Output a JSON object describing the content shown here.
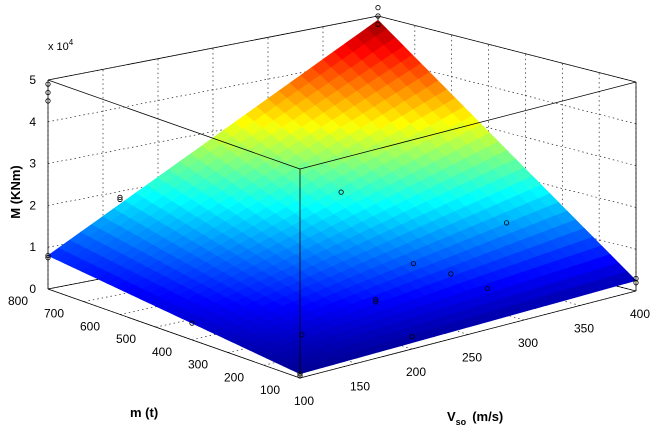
{
  "chart_data": {
    "type": "surface",
    "xlabel": "V",
    "xlabel_sub": "so",
    "xlabel_unit": "(m/s)",
    "ylabel": "m  (t)",
    "zlabel": "M  (KNm)",
    "z_exponent_prefix": "x 10",
    "z_exponent_power": "4",
    "xlim": [
      100,
      400
    ],
    "ylim": [
      100,
      800
    ],
    "zlim": [
      0,
      50000
    ],
    "x_ticks": [
      "100",
      "150",
      "200",
      "250",
      "300",
      "350",
      "400"
    ],
    "y_ticks": [
      "100",
      "200",
      "300",
      "400",
      "500",
      "600",
      "700",
      "800"
    ],
    "z_ticks": [
      "0",
      "1",
      "2",
      "3",
      "4",
      "5"
    ],
    "grid": true,
    "colormap": "jet",
    "surface_corners": [
      {
        "x": 100,
        "y": 100,
        "z": 1000
      },
      {
        "x": 400,
        "y": 100,
        "z": 2500
      },
      {
        "x": 100,
        "y": 800,
        "z": 8000
      },
      {
        "x": 400,
        "y": 800,
        "z": 49000
      }
    ],
    "points": [
      {
        "x": 100,
        "y": 100,
        "z": 1000
      },
      {
        "x": 100,
        "y": 100,
        "z": 500
      },
      {
        "x": 100,
        "y": 400,
        "z": 4000
      },
      {
        "x": 100,
        "y": 800,
        "z": 8000
      },
      {
        "x": 100,
        "y": 800,
        "z": 7500
      },
      {
        "x": 100,
        "y": 600,
        "z": 28000
      },
      {
        "x": 100,
        "y": 600,
        "z": 27500
      },
      {
        "x": 150,
        "y": 250,
        "z": 2500
      },
      {
        "x": 200,
        "y": 100,
        "z": 3000
      },
      {
        "x": 200,
        "y": 200,
        "z": 9000
      },
      {
        "x": 200,
        "y": 200,
        "z": 8500
      },
      {
        "x": 250,
        "y": 250,
        "z": 13000
      },
      {
        "x": 300,
        "y": 200,
        "z": 5000
      },
      {
        "x": 300,
        "y": 300,
        "z": 6000
      },
      {
        "x": 300,
        "y": 600,
        "z": 18000
      },
      {
        "x": 350,
        "y": 300,
        "z": 15000
      },
      {
        "x": 400,
        "y": 100,
        "z": 3000
      },
      {
        "x": 400,
        "y": 100,
        "z": 2000
      },
      {
        "x": 400,
        "y": 800,
        "z": 52000
      },
      {
        "x": 400,
        "y": 800,
        "z": 50000
      },
      {
        "x": 400,
        "y": 800,
        "z": 48000
      },
      {
        "x": 100,
        "y": 800,
        "z": 49000
      },
      {
        "x": 100,
        "y": 800,
        "z": 47000
      },
      {
        "x": 100,
        "y": 800,
        "z": 45000
      }
    ]
  }
}
